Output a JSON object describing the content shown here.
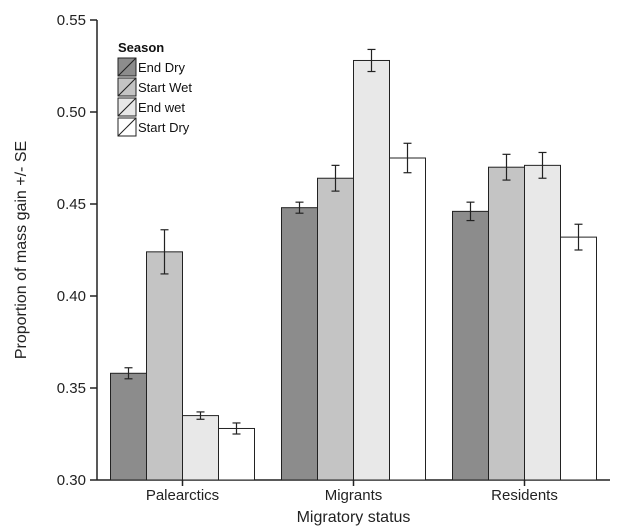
{
  "chart_data": {
    "type": "bar",
    "xlabel": "Migratory status",
    "ylabel": "Proportion of mass gain +/- SE",
    "ylim": [
      0.3,
      0.55
    ],
    "yticks": [
      "0.30",
      "0.35",
      "0.40",
      "0.45",
      "0.50",
      "0.55"
    ],
    "categories": [
      "Palearctics",
      "Migrants",
      "Residents"
    ],
    "legend_title": "Season",
    "legend_position": "top-left",
    "series": [
      {
        "name": "End Dry",
        "color": "#8c8c8c",
        "values": [
          0.358,
          0.448,
          0.446
        ],
        "se": [
          0.003,
          0.003,
          0.005
        ]
      },
      {
        "name": "Start Wet",
        "color": "#c4c4c4",
        "values": [
          0.424,
          0.464,
          0.47
        ],
        "se": [
          0.012,
          0.007,
          0.007
        ]
      },
      {
        "name": "End wet",
        "color": "#e8e8e8",
        "values": [
          0.335,
          0.528,
          0.471
        ],
        "se": [
          0.002,
          0.006,
          0.007
        ]
      },
      {
        "name": "Start Dry",
        "color": "#ffffff",
        "values": [
          0.328,
          0.475,
          0.432
        ],
        "se": [
          0.003,
          0.008,
          0.007
        ]
      }
    ]
  }
}
